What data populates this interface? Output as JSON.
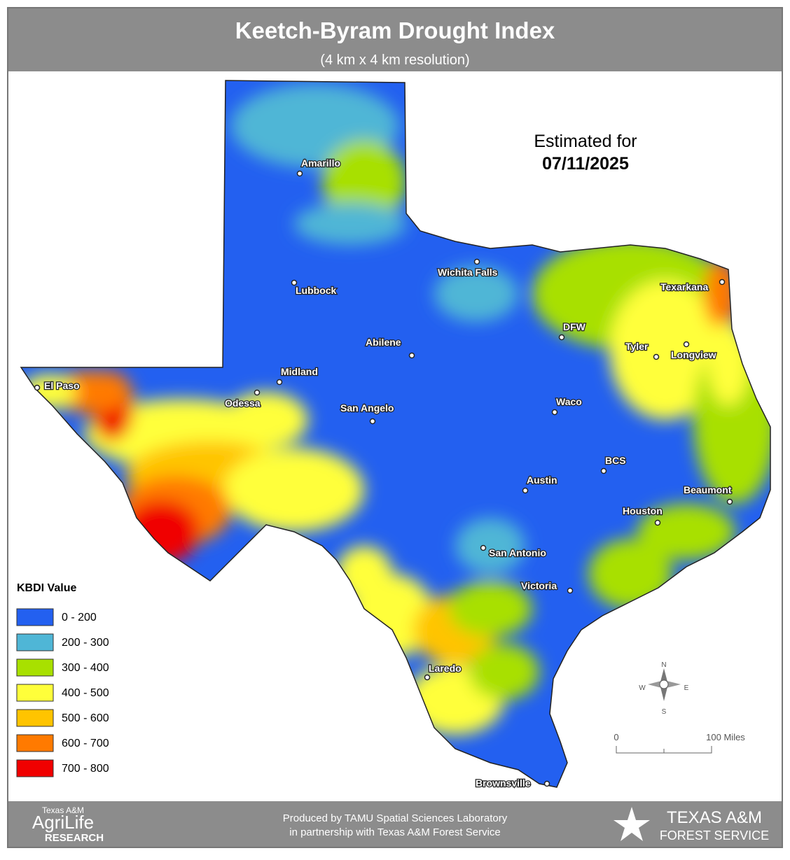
{
  "header": {
    "title": "Keetch-Byram Drought Index",
    "subtitle": "(4 km x 4 km resolution)"
  },
  "estimate": {
    "label": "Estimated for",
    "date": "07/11/2025"
  },
  "cities": [
    "Amarillo",
    "Lubbock",
    "Wichita Falls",
    "Texarkana",
    "DFW",
    "Abilene",
    "Tyler",
    "Longview",
    "Midland",
    "El Paso",
    "Odessa",
    "San Angelo",
    "Waco",
    "BCS",
    "Austin",
    "Beaumont",
    "Houston",
    "San Antonio",
    "Victoria",
    "Laredo",
    "Brownsville"
  ],
  "legend": {
    "title": "KBDI Value",
    "items": [
      {
        "label": "0 - 200",
        "color": "#2360f0"
      },
      {
        "label": "200 - 300",
        "color": "#4fb6d6"
      },
      {
        "label": "300 - 400",
        "color": "#a8e000"
      },
      {
        "label": "400 - 500",
        "color": "#ffff3a"
      },
      {
        "label": "500 - 600",
        "color": "#ffc400"
      },
      {
        "label": "600 - 700",
        "color": "#ff7a00"
      },
      {
        "label": "700 - 800",
        "color": "#f00000"
      }
    ]
  },
  "compass": {
    "n": "N",
    "w": "W",
    "e": "E",
    "s": "S"
  },
  "scale": {
    "start": "0",
    "end": "100 Miles"
  },
  "footer": {
    "line1": "Produced by TAMU Spatial Sciences Laboratory",
    "line2": "in partnership with Texas A&M Forest Service",
    "left_logo": {
      "top": "Texas A&M",
      "middle": "AgriLife",
      "bottom": "Research"
    },
    "right_logo": {
      "top": "Texas A&M",
      "bottom": "Forest Service"
    }
  }
}
